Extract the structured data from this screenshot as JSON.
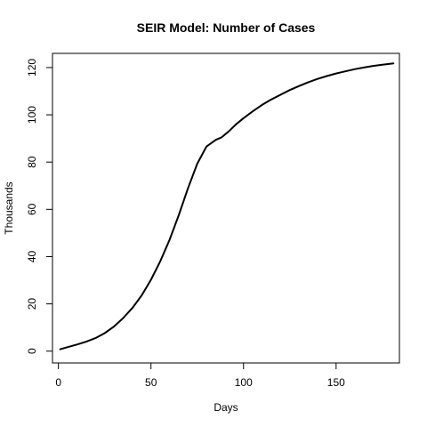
{
  "chart_data": {
    "type": "line",
    "title": "SEIR Model: Number of Cases",
    "xlabel": "Days",
    "ylabel": "Thousands",
    "xlim": [
      -3.2,
      184.2
    ],
    "ylim": [
      -5,
      126
    ],
    "x_ticks": [
      0,
      50,
      100,
      150
    ],
    "y_ticks": [
      0,
      20,
      40,
      60,
      80,
      100,
      120
    ],
    "grid": false,
    "line_color": "#000000",
    "series": [
      {
        "x": [
          1,
          5,
          10,
          15,
          20,
          25,
          30,
          35,
          40,
          45,
          50,
          55,
          60,
          65,
          70,
          75,
          80,
          85,
          88,
          92,
          96,
          100,
          105,
          110,
          115,
          120,
          125,
          130,
          135,
          140,
          145,
          150,
          155,
          160,
          165,
          170,
          175,
          181
        ],
        "y": [
          0.8,
          1.7,
          2.8,
          4.0,
          5.5,
          7.6,
          10.4,
          14.0,
          18.3,
          23.6,
          30.2,
          38.0,
          47.0,
          57.5,
          68.9,
          79.3,
          86.6,
          89.4,
          90.4,
          93.0,
          96.0,
          98.6,
          101.5,
          104.2,
          106.5,
          108.5,
          110.5,
          112.2,
          113.8,
          115.2,
          116.4,
          117.5,
          118.4,
          119.3,
          120.0,
          120.7,
          121.2,
          121.8
        ]
      }
    ]
  }
}
